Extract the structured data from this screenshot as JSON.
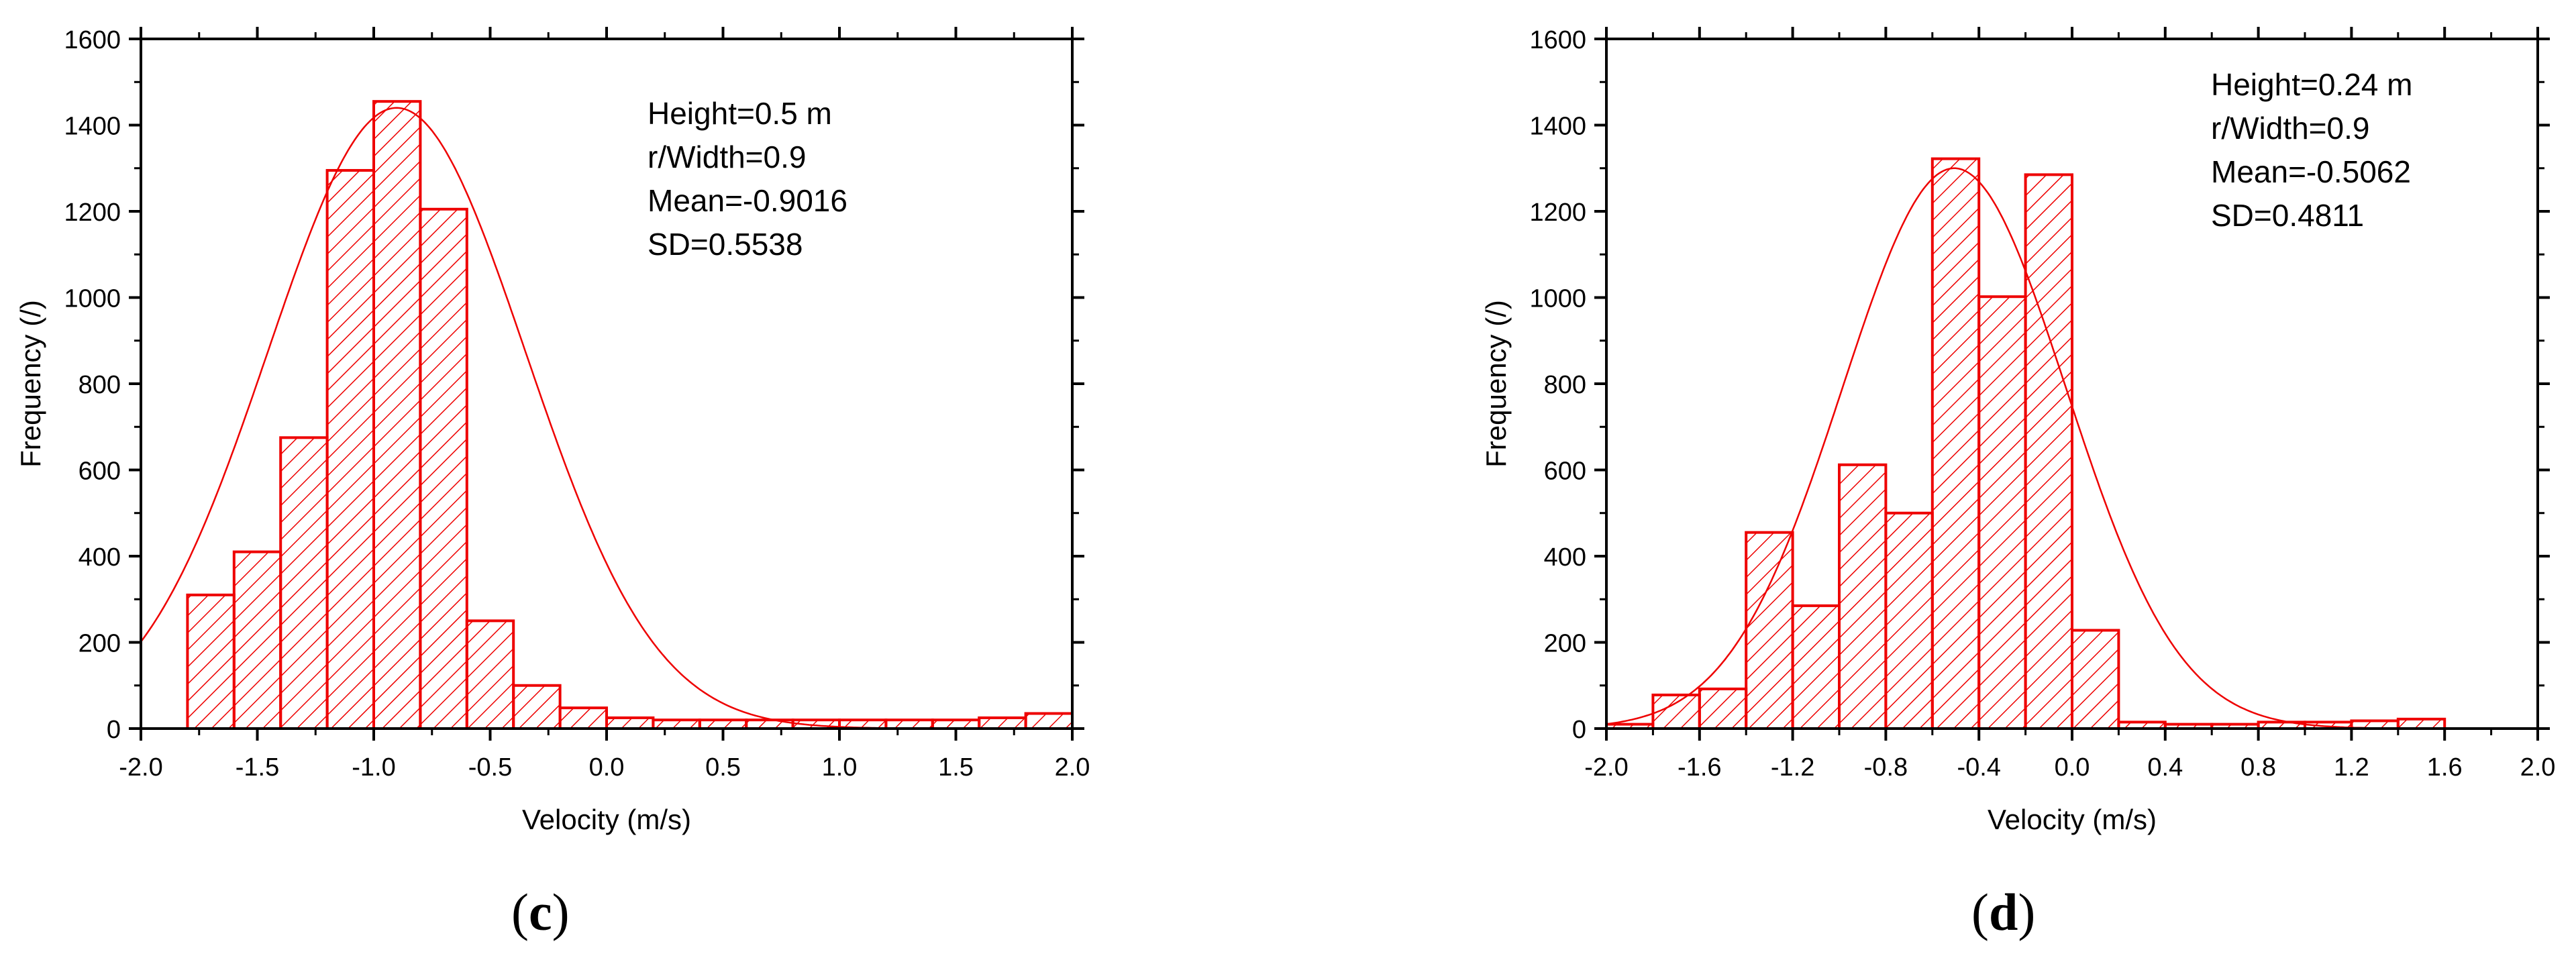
{
  "chart_data": [
    {
      "type": "bar",
      "panel_label": "c",
      "xlabel": "Velocity (m/s)",
      "ylabel": "Frequency (/)",
      "xlim": [
        -2.0,
        2.0
      ],
      "ylim": [
        0,
        1600
      ],
      "xticks": [
        -2.0,
        -1.5,
        -1.0,
        -0.5,
        0.0,
        0.5,
        1.0,
        1.5,
        2.0
      ],
      "xtick_labels": [
        "-2.0",
        "-1.5",
        "-1.0",
        "-0.5",
        "0.0",
        "0.5",
        "1.0",
        "1.5",
        "2.0"
      ],
      "yticks": [
        0,
        200,
        400,
        600,
        800,
        1000,
        1200,
        1400,
        1600
      ],
      "ytick_labels": [
        "0",
        "200",
        "400",
        "600",
        "800",
        "1000",
        "1200",
        "1400",
        "1600"
      ],
      "bin_edges": [
        -1.8,
        -1.6,
        -1.4,
        -1.2,
        -1.0,
        -0.8,
        -0.6,
        -0.4,
        -0.2,
        0.0,
        0.2,
        0.4,
        0.6,
        0.8,
        1.0,
        1.2,
        1.4,
        1.6,
        1.8,
        2.0
      ],
      "values": [
        310,
        410,
        675,
        1295,
        1455,
        1205,
        250,
        100,
        48,
        25,
        20,
        20,
        20,
        20,
        20,
        20,
        20,
        25,
        35
      ],
      "fit": {
        "curve": "normal",
        "mean": -0.9016,
        "sd": 0.5538,
        "peak": 1440
      },
      "annotations": [
        "Height=0.5 m",
        "r/Width=0.9",
        "Mean=-0.9016",
        "SD=0.5538"
      ],
      "grid": false,
      "colors": {
        "bars": "#ee0000",
        "fit": "#ee0000",
        "axes": "#000000"
      }
    },
    {
      "type": "bar",
      "panel_label": "d",
      "xlabel": "Velocity (m/s)",
      "ylabel": "Frequency (/)",
      "xlim": [
        -2.0,
        2.0
      ],
      "ylim": [
        0,
        1600
      ],
      "xticks": [
        -2.0,
        -1.6,
        -1.2,
        -0.8,
        -0.4,
        0.0,
        0.4,
        0.8,
        1.2,
        1.6,
        2.0
      ],
      "xtick_labels": [
        "-2.0",
        "-1.6",
        "-1.2",
        "-0.8",
        "-0.4",
        "0.0",
        "0.4",
        "0.8",
        "1.2",
        "1.6",
        "2.0"
      ],
      "yticks": [
        0,
        200,
        400,
        600,
        800,
        1000,
        1200,
        1400,
        1600
      ],
      "ytick_labels": [
        "0",
        "200",
        "400",
        "600",
        "800",
        "1000",
        "1200",
        "1400",
        "1600"
      ],
      "bin_edges": [
        -2.0,
        -1.8,
        -1.6,
        -1.4,
        -1.2,
        -1.0,
        -0.8,
        -0.6,
        -0.4,
        -0.2,
        0.0,
        0.2,
        0.4,
        0.6,
        0.8,
        1.0,
        1.2,
        1.4,
        1.6
      ],
      "values": [
        10,
        78,
        92,
        455,
        285,
        612,
        500,
        1322,
        1002,
        1285,
        228,
        15,
        10,
        10,
        15,
        15,
        18,
        22
      ],
      "fit": {
        "curve": "normal",
        "mean": -0.5062,
        "sd": 0.4811,
        "peak": 1300
      },
      "annotations": [
        "Height=0.24 m",
        "r/Width=0.9",
        "Mean=-0.5062",
        "SD=0.4811"
      ],
      "grid": false,
      "colors": {
        "bars": "#ee0000",
        "fit": "#ee0000",
        "axes": "#000000"
      }
    }
  ],
  "captions": {
    "c": "c",
    "d": "d"
  }
}
